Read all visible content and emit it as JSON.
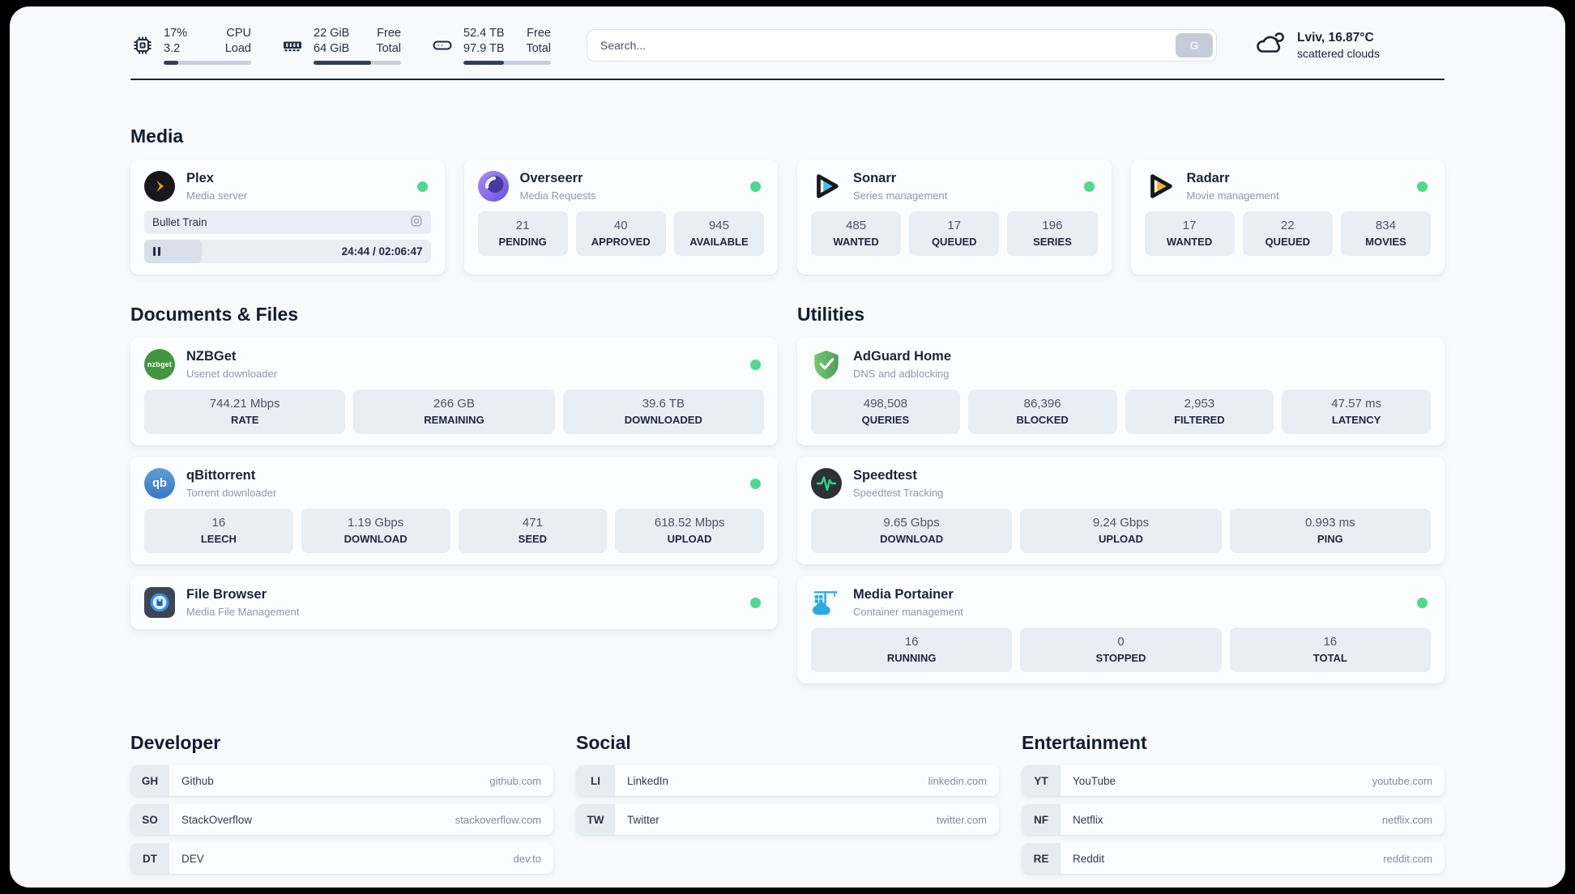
{
  "colors": {
    "status_online": "#4fd98c",
    "plex_brand": "#e5a00d",
    "overseerr_brand": "#7c5bdc",
    "sonarr_brand": "#35c5f4",
    "radarr_brand": "#fdb31e",
    "nzbget_brand": "#419641",
    "qbittorrent_brand": "#3a76c4",
    "adguard_brand": "#63b463",
    "speedtest_brand": "#2bd885",
    "portainer_brand": "#29abe2",
    "filebrowser_brand": "#3391e9"
  },
  "header": {
    "system_stats": [
      {
        "name": "cpu",
        "col1": [
          "17%",
          "3.2"
        ],
        "col2": [
          "CPU",
          "Load"
        ],
        "progress_pct": 17
      },
      {
        "name": "memory",
        "col1": [
          "22 GiB",
          "64 GiB"
        ],
        "col2": [
          "Free",
          "Total"
        ],
        "progress_pct": 66
      },
      {
        "name": "storage",
        "col1": [
          "52.4 TB",
          "97.9 TB"
        ],
        "col2": [
          "Free",
          "Total"
        ],
        "progress_pct": 46
      }
    ],
    "search": {
      "placeholder": "Search...",
      "button": "G"
    },
    "weather": {
      "title": "Lviv, 16.87°C",
      "subtitle": "scattered clouds"
    }
  },
  "media": {
    "title": "Media",
    "apps": [
      {
        "name": "Plex",
        "subtitle": "Media server",
        "status": "online",
        "now_playing": {
          "title": "Bullet Train",
          "time_display": "24:44 / 02:06:47",
          "progress_pct": 20,
          "state": "paused"
        }
      },
      {
        "name": "Overseerr",
        "subtitle": "Media Requests",
        "status": "online",
        "stats": [
          {
            "value": "21",
            "label": "PENDING"
          },
          {
            "value": "40",
            "label": "APPROVED"
          },
          {
            "value": "945",
            "label": "AVAILABLE"
          }
        ]
      },
      {
        "name": "Sonarr",
        "subtitle": "Series management",
        "status": "online",
        "stats": [
          {
            "value": "485",
            "label": "WANTED"
          },
          {
            "value": "17",
            "label": "QUEUED"
          },
          {
            "value": "196",
            "label": "SERIES"
          }
        ]
      },
      {
        "name": "Radarr",
        "subtitle": "Movie management",
        "status": "online",
        "stats": [
          {
            "value": "17",
            "label": "WANTED"
          },
          {
            "value": "22",
            "label": "QUEUED"
          },
          {
            "value": "834",
            "label": "MOVIES"
          }
        ]
      }
    ]
  },
  "documents": {
    "title": "Documents & Files",
    "apps": [
      {
        "name": "NZBGet",
        "subtitle": "Usenet downloader",
        "status": "online",
        "stats": [
          {
            "value": "744.21 Mbps",
            "label": "RATE"
          },
          {
            "value": "266 GB",
            "label": "REMAINING"
          },
          {
            "value": "39.6 TB",
            "label": "DOWNLOADED"
          }
        ]
      },
      {
        "name": "qBittorrent",
        "subtitle": "Torrent downloader",
        "status": "online",
        "stats": [
          {
            "value": "16",
            "label": "LEECH"
          },
          {
            "value": "1.19 Gbps",
            "label": "DOWNLOAD"
          },
          {
            "value": "471",
            "label": "SEED"
          },
          {
            "value": "618.52 Mbps",
            "label": "UPLOAD"
          }
        ]
      },
      {
        "name": "File Browser",
        "subtitle": "Media File Management",
        "status": "online",
        "stats": []
      }
    ]
  },
  "utilities": {
    "title": "Utilities",
    "apps": [
      {
        "name": "AdGuard Home",
        "subtitle": "DNS and adblocking",
        "stats": [
          {
            "value": "498,508",
            "label": "QUERIES"
          },
          {
            "value": "86,396",
            "label": "BLOCKED"
          },
          {
            "value": "2,953",
            "label": "FILTERED"
          },
          {
            "value": "47.57 ms",
            "label": "LATENCY"
          }
        ]
      },
      {
        "name": "Speedtest",
        "subtitle": "Speedtest Tracking",
        "stats": [
          {
            "value": "9.65 Gbps",
            "label": "DOWNLOAD"
          },
          {
            "value": "9.24 Gbps",
            "label": "UPLOAD"
          },
          {
            "value": "0.993 ms",
            "label": "PING"
          }
        ]
      },
      {
        "name": "Media Portainer",
        "subtitle": "Container management",
        "status": "online",
        "stats": [
          {
            "value": "16",
            "label": "RUNNING"
          },
          {
            "value": "0",
            "label": "STOPPED"
          },
          {
            "value": "16",
            "label": "TOTAL"
          }
        ]
      }
    ]
  },
  "nzbget_icon_text": "nzbget",
  "qbittorrent_icon_text": "qb",
  "bookmarks": [
    {
      "title": "Developer",
      "links": [
        {
          "abbr": "GH",
          "name": "Github",
          "domain": "github.com"
        },
        {
          "abbr": "SO",
          "name": "StackOverflow",
          "domain": "stackoverflow.com"
        },
        {
          "abbr": "DT",
          "name": "DEV",
          "domain": "dev.to"
        }
      ]
    },
    {
      "title": "Social",
      "links": [
        {
          "abbr": "LI",
          "name": "LinkedIn",
          "domain": "linkedin.com"
        },
        {
          "abbr": "TW",
          "name": "Twitter",
          "domain": "twitter.com"
        }
      ]
    },
    {
      "title": "Entertainment",
      "links": [
        {
          "abbr": "YT",
          "name": "YouTube",
          "domain": "youtube.com"
        },
        {
          "abbr": "NF",
          "name": "Netflix",
          "domain": "netflix.com"
        },
        {
          "abbr": "RE",
          "name": "Reddit",
          "domain": "reddit.com"
        }
      ]
    }
  ]
}
